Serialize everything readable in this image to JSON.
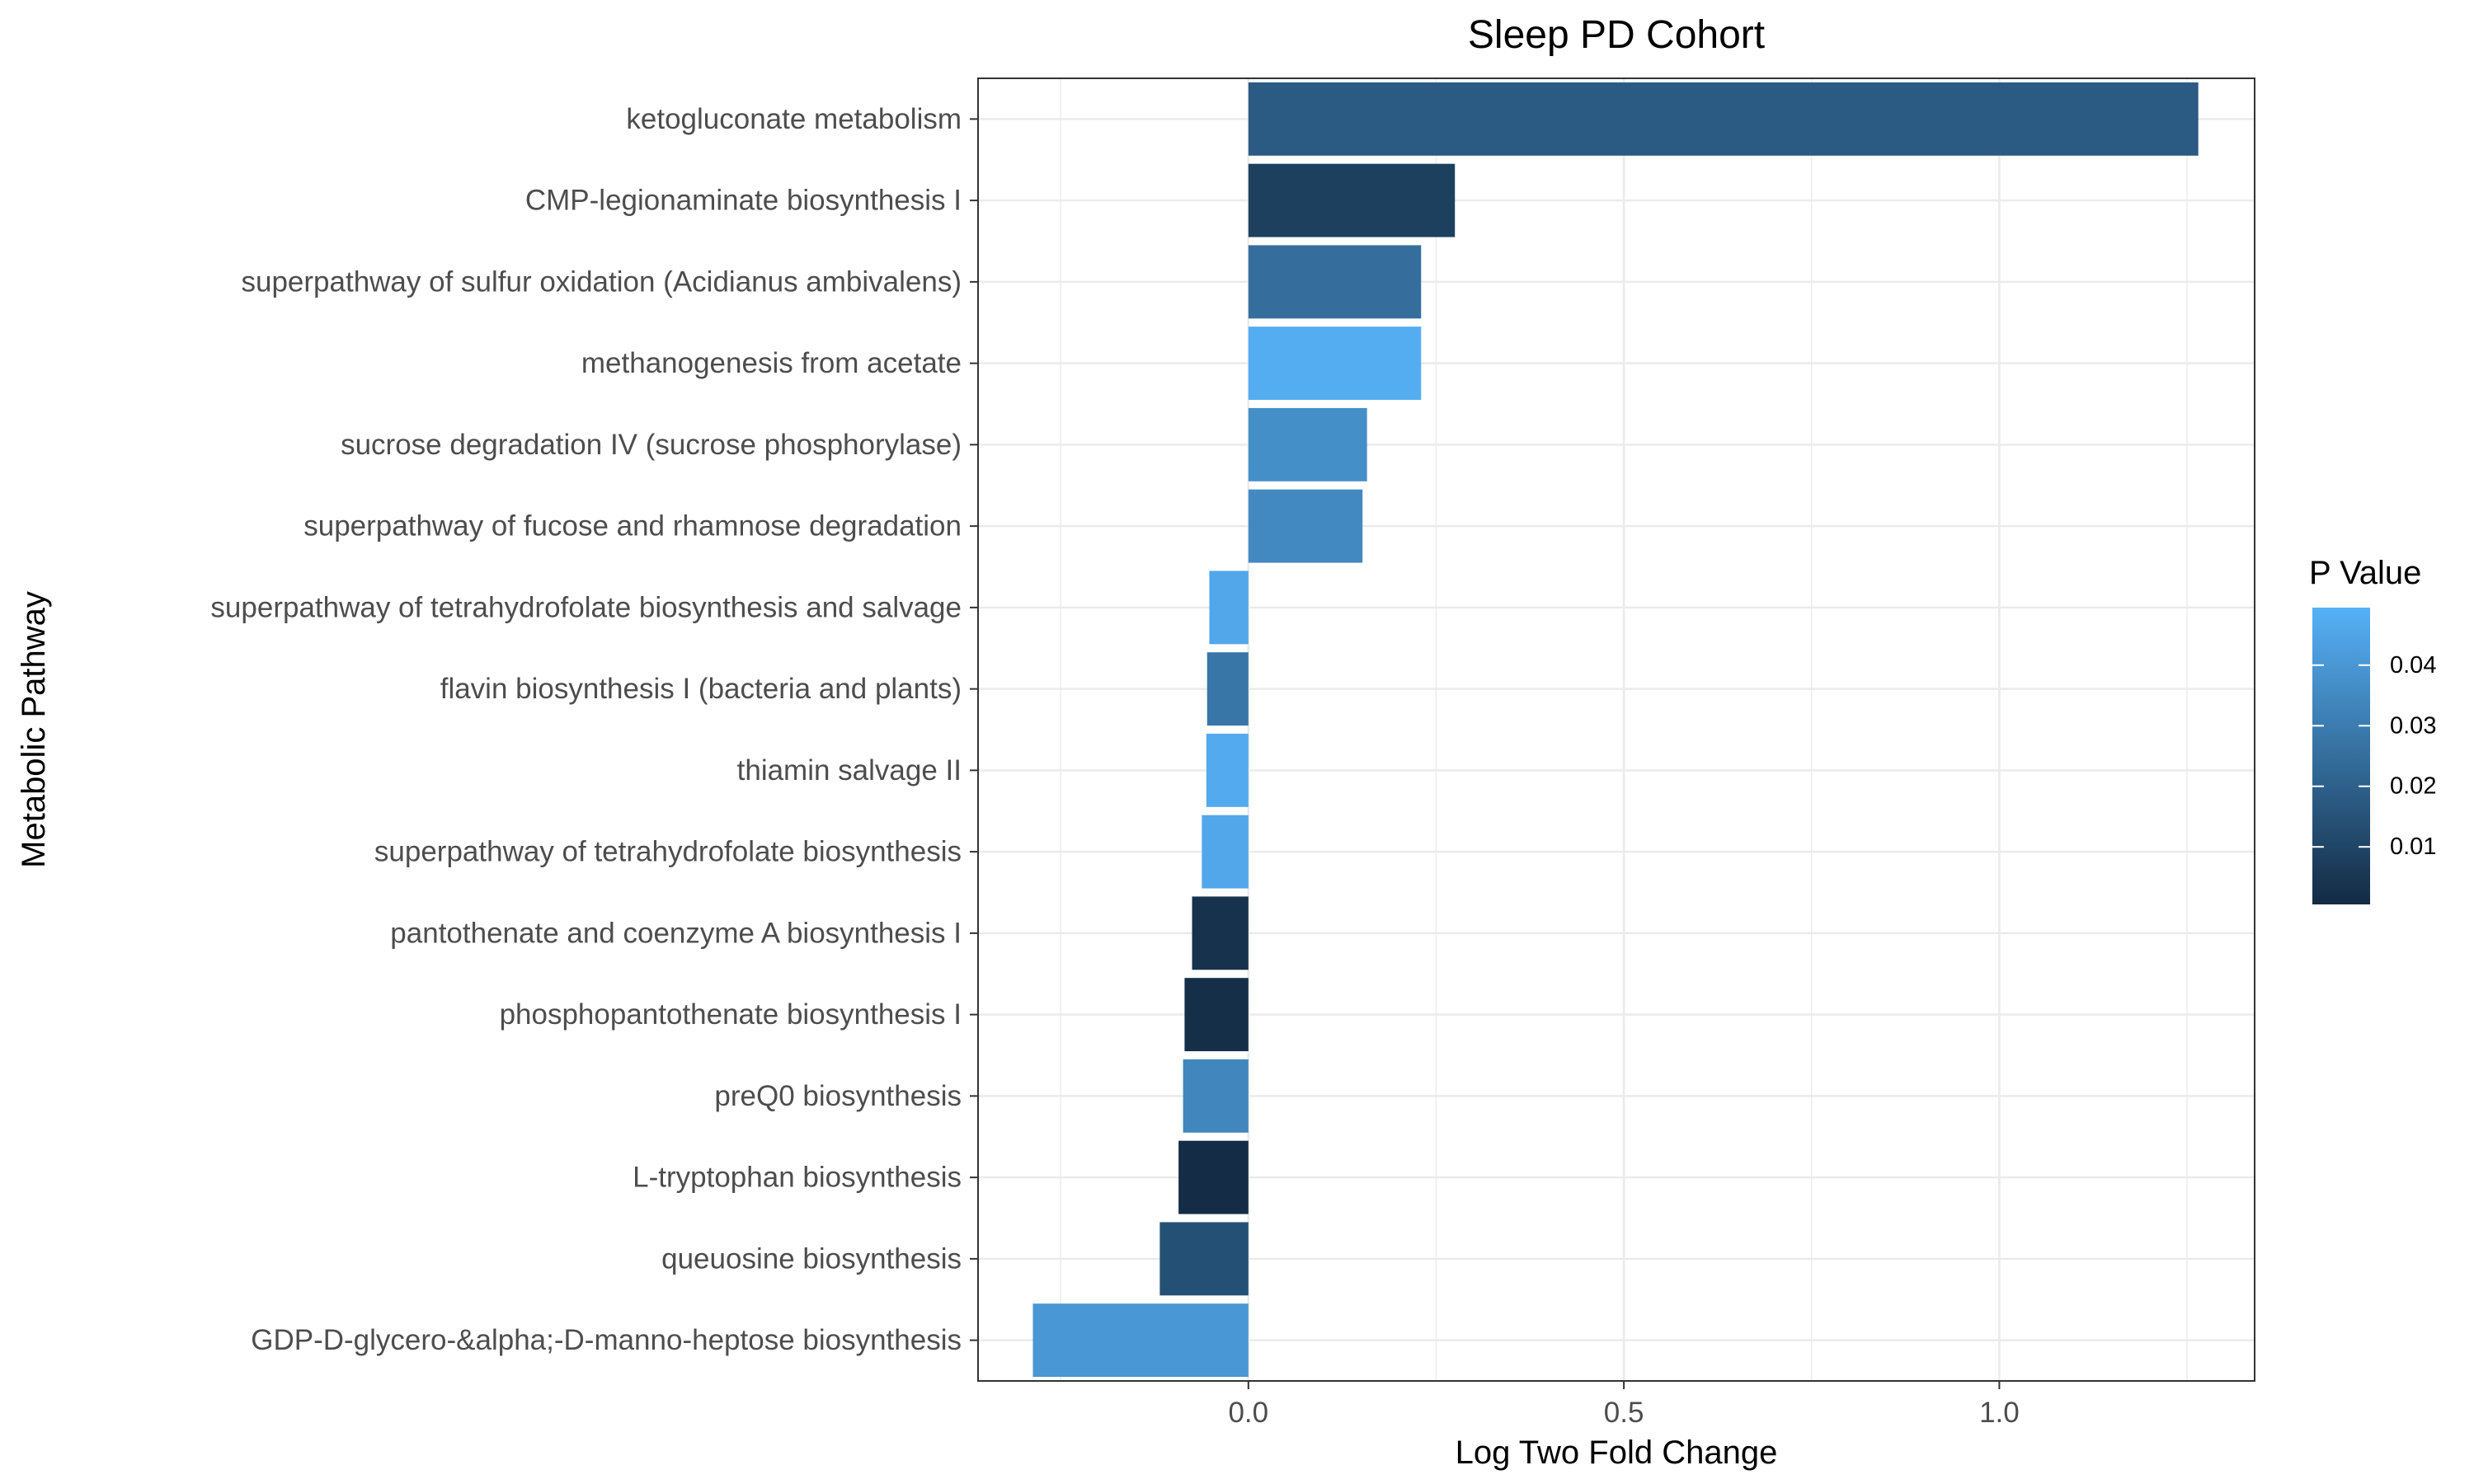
{
  "chart_data": {
    "type": "bar",
    "orientation": "horizontal",
    "title": "Sleep PD Cohort",
    "xlabel": "Log Two Fold Change",
    "ylabel": "Metabolic Pathway",
    "xlim": [
      -0.36,
      1.34
    ],
    "x_ticks": [
      0.0,
      0.5,
      1.0
    ],
    "x_tick_labels": [
      "0.0",
      "0.5",
      "1.0"
    ],
    "grid": true,
    "categories": [
      "ketogluconate metabolism",
      "CMP-legionaminate biosynthesis I",
      "superpathway of sulfur oxidation (Acidianus ambivalens)",
      "methanogenesis from acetate",
      "sucrose degradation IV (sucrose phosphorylase)",
      "superpathway of fucose and rhamnose degradation",
      "superpathway of tetrahydrofolate biosynthesis and salvage",
      "flavin biosynthesis I (bacteria and plants)",
      "thiamin salvage II",
      "superpathway of tetrahydrofolate biosynthesis",
      "pantothenate and coenzyme A biosynthesis I",
      "phosphopantothenate biosynthesis I",
      "preQ0 biosynthesis",
      "L-tryptophan biosynthesis",
      "queuosine biosynthesis",
      "GDP-D-glycero-&alpha;-D-manno-heptose biosynthesis"
    ],
    "values": [
      1.265,
      0.275,
      0.23,
      0.23,
      0.158,
      0.152,
      -0.052,
      -0.055,
      -0.056,
      -0.062,
      -0.075,
      -0.085,
      -0.087,
      -0.093,
      -0.118,
      -0.287
    ],
    "p_values": [
      0.018,
      0.008,
      0.025,
      0.048,
      0.037,
      0.035,
      0.046,
      0.028,
      0.047,
      0.046,
      0.003,
      0.002,
      0.034,
      0.001,
      0.014,
      0.04
    ],
    "color_scale": {
      "name": "P Value",
      "low_color": "#132B43",
      "high_color": "#56B1F7",
      "domain": [
        0.0005,
        0.0495
      ],
      "ticks": [
        0.01,
        0.02,
        0.03,
        0.04
      ],
      "tick_labels": [
        "0.01",
        "0.02",
        "0.03",
        "0.04"
      ]
    },
    "legend_position": "right"
  }
}
